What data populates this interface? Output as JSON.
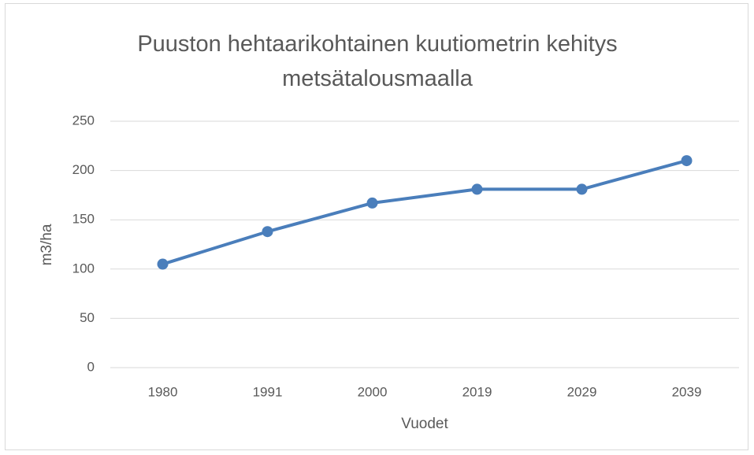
{
  "chart_data": {
    "type": "line",
    "title": "Puuston hehtaarikohtainen kuutiometrin kehitys metsätalousmaalla",
    "x_label": "Vuodet",
    "y_label": "m3/ha",
    "categories": [
      "1980",
      "1991",
      "2000",
      "2019",
      "2029",
      "2039"
    ],
    "series": [
      {
        "name": "m3/ha",
        "color": "#4a7ebb",
        "values": [
          105,
          138,
          167,
          181,
          181,
          210
        ]
      }
    ],
    "ylim": [
      0,
      250
    ],
    "yticks": [
      0,
      50,
      100,
      150,
      200,
      250
    ],
    "grid": true
  }
}
